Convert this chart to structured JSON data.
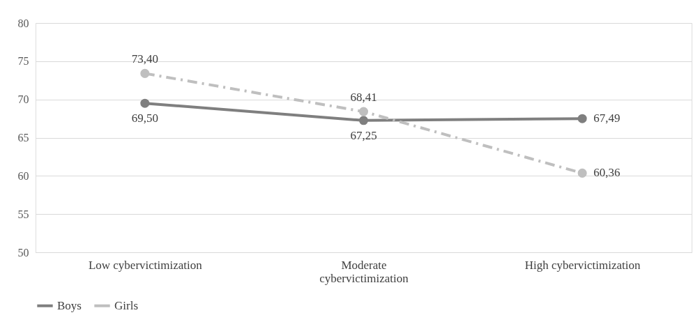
{
  "chart_data": {
    "type": "line",
    "categories": [
      "Low cybervictimization",
      "Moderate cybervictimization",
      "High cybervictimization"
    ],
    "series": [
      {
        "name": "Boys",
        "color": "#7f7f7f",
        "line_style": "solid",
        "values": [
          69.5,
          67.25,
          67.49
        ],
        "value_labels": [
          "69,50",
          "67,25",
          "67,49"
        ]
      },
      {
        "name": "Girls",
        "color": "#bfbfbf",
        "line_style": "dashed",
        "values": [
          73.4,
          68.41,
          60.36
        ],
        "value_labels": [
          "73,40",
          "68,41",
          "60,36"
        ]
      }
    ],
    "ylim": [
      50,
      80
    ],
    "yticks": [
      50,
      55,
      60,
      65,
      70,
      75,
      80
    ],
    "grid": "y",
    "legend": "bottom",
    "marker": "circle"
  }
}
